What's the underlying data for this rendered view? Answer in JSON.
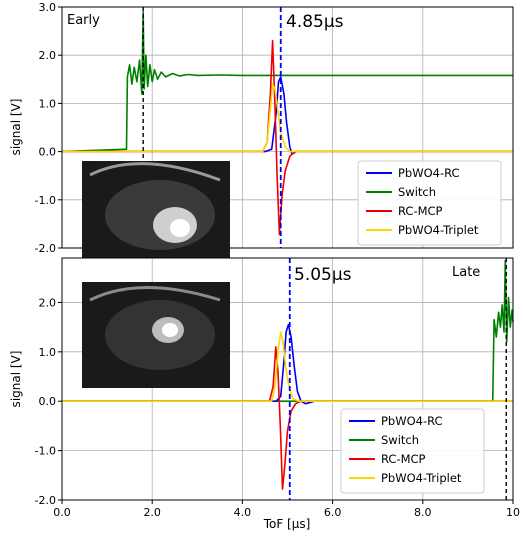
{
  "chart_data": [
    {
      "type": "line",
      "corner_label": "Early",
      "marker_label": "4.85µs",
      "marker_x": 4.85,
      "ylabel": "signal [V]",
      "xlabel": "",
      "xlim": [
        0,
        10
      ],
      "ylim": [
        -2.0,
        3.0
      ],
      "yticks": [
        -2.0,
        -1.0,
        0.0,
        1.0,
        2.0,
        3.0
      ],
      "ytick_labels": [
        "-2.0",
        "-1.0",
        "0.0",
        "1.0",
        "2.0",
        "3.0"
      ],
      "grid": true,
      "legend_position": "lower-right",
      "series": [
        {
          "name": "PbWO4-RC",
          "color": "#0000ee",
          "x": [
            0,
            4.5,
            4.65,
            4.75,
            4.8,
            4.85,
            4.92,
            4.98,
            5.05,
            5.1,
            5.2,
            5.4,
            10
          ],
          "y": [
            0.0,
            0.0,
            0.05,
            0.8,
            1.45,
            1.55,
            1.2,
            0.6,
            0.1,
            -0.05,
            0.0,
            0.0,
            0.0
          ]
        },
        {
          "name": "Switch",
          "color": "#008000",
          "x": [
            0,
            1.43,
            1.45,
            1.5,
            1.55,
            1.6,
            1.66,
            1.72,
            1.77,
            1.8,
            1.82,
            1.86,
            1.9,
            1.95,
            2.0,
            2.05,
            2.12,
            2.2,
            2.3,
            2.45,
            2.6,
            2.8,
            3.0,
            3.5,
            4.0,
            5.0,
            6.0,
            7.0,
            8.0,
            9.0,
            10
          ],
          "y": [
            0.0,
            0.05,
            1.55,
            1.8,
            1.4,
            1.75,
            1.45,
            1.9,
            1.2,
            2.9,
            1.3,
            2.0,
            1.35,
            1.8,
            1.45,
            1.7,
            1.5,
            1.65,
            1.55,
            1.62,
            1.57,
            1.6,
            1.58,
            1.59,
            1.58,
            1.58,
            1.58,
            1.58,
            1.58,
            1.58,
            1.58
          ]
        },
        {
          "name": "RC-MCP",
          "color": "#ee0000",
          "x": [
            0,
            4.45,
            4.55,
            4.62,
            4.67,
            4.72,
            4.77,
            4.82,
            4.88,
            4.95,
            5.05,
            5.15,
            5.3,
            10
          ],
          "y": [
            0.0,
            0.0,
            0.2,
            1.2,
            2.3,
            1.0,
            -0.5,
            -1.72,
            -0.9,
            -0.4,
            -0.1,
            0.0,
            0.0,
            0.0
          ]
        },
        {
          "name": "PbWO4-Triplet",
          "color": "#ffd700",
          "x": [
            0,
            4.45,
            4.55,
            4.62,
            4.67,
            4.72,
            4.78,
            4.85,
            4.95,
            5.05,
            5.2,
            10
          ],
          "y": [
            0.0,
            0.0,
            0.2,
            0.9,
            1.4,
            1.3,
            0.9,
            0.4,
            0.1,
            0.0,
            0.0,
            0.0
          ]
        }
      ],
      "extra_markers": [
        1.8
      ]
    },
    {
      "type": "line",
      "corner_label": "Late",
      "marker_label": "5.05µs",
      "marker_x": 5.05,
      "ylabel": "signal [V]",
      "xlabel": "ToF [µs]",
      "xlim": [
        0,
        10
      ],
      "ylim": [
        -2.0,
        2.9
      ],
      "yticks": [
        -2.0,
        -1.0,
        0.0,
        1.0,
        2.0
      ],
      "ytick_labels": [
        "-2.0",
        "-1.0",
        "0.0",
        "1.0",
        "2.0"
      ],
      "xticks": [
        0,
        2,
        4,
        6,
        8,
        10
      ],
      "xtick_labels": [
        "0.0",
        "2.0",
        "4.0",
        "6.0",
        "8.0",
        "10"
      ],
      "grid": true,
      "legend_position": "lower-right",
      "series": [
        {
          "name": "PbWO4-RC",
          "color": "#0000ee",
          "x": [
            0,
            4.75,
            4.85,
            4.92,
            4.97,
            5.02,
            5.08,
            5.15,
            5.22,
            5.3,
            5.4,
            5.6,
            10
          ],
          "y": [
            0.0,
            0.0,
            0.1,
            0.8,
            1.4,
            1.55,
            1.3,
            0.7,
            0.2,
            0.0,
            -0.05,
            0.0,
            0.0
          ]
        },
        {
          "name": "Switch",
          "color": "#008000",
          "x": [
            0,
            9.55,
            9.58,
            9.63,
            9.68,
            9.72,
            9.76,
            9.8,
            9.83,
            9.86,
            9.9,
            9.94,
            9.98,
            10
          ],
          "y": [
            0.0,
            0.0,
            1.65,
            1.3,
            1.8,
            1.5,
            1.95,
            1.4,
            2.85,
            1.2,
            2.1,
            1.5,
            1.85,
            1.6
          ]
        },
        {
          "name": "RC-MCP",
          "color": "#ee0000",
          "x": [
            0,
            4.6,
            4.68,
            4.74,
            4.79,
            4.84,
            4.89,
            4.94,
            5.0,
            5.08,
            5.18,
            5.3,
            5.5,
            10
          ],
          "y": [
            0.0,
            0.0,
            0.3,
            1.1,
            0.6,
            -0.5,
            -1.78,
            -1.3,
            -0.6,
            -0.2,
            -0.05,
            0.0,
            0.0,
            0.0
          ]
        },
        {
          "name": "PbWO4-Triplet",
          "color": "#ffd700",
          "x": [
            0,
            4.65,
            4.72,
            4.8,
            4.85,
            4.9,
            4.96,
            5.03,
            5.12,
            5.25,
            10
          ],
          "y": [
            0.0,
            0.0,
            0.3,
            1.1,
            1.4,
            1.2,
            0.7,
            0.3,
            0.05,
            0.0,
            0.0
          ]
        }
      ],
      "extra_markers": [
        9.85
      ]
    }
  ]
}
